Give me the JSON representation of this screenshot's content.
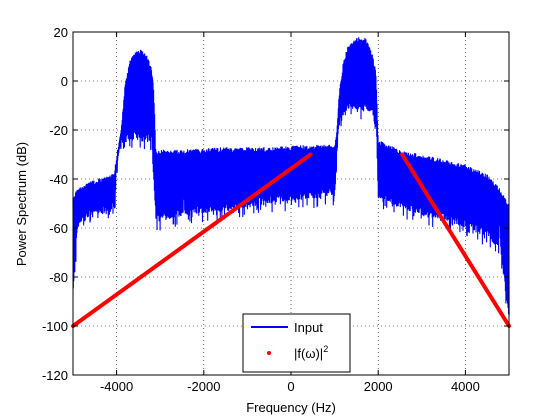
{
  "chart_data": {
    "type": "line",
    "title": "",
    "xlabel": "Frequency (Hz)",
    "ylabel": "Power Spectrum (dB)",
    "xlim": [
      -5000,
      5000
    ],
    "ylim": [
      -120,
      20
    ],
    "xticks": [
      -4000,
      -2000,
      0,
      2000,
      4000
    ],
    "yticks": [
      20,
      0,
      -20,
      -40,
      -60,
      -80,
      -100,
      -120
    ],
    "grid": true,
    "legend_position": "bottom-center",
    "series": [
      {
        "name": "Input",
        "color": "#0000ff",
        "style": "solid",
        "description": "dense oscillating spectrum",
        "envelope_upper": [
          [
            -5000,
            -47
          ],
          [
            -4900,
            -44
          ],
          [
            -4600,
            -41
          ],
          [
            -4300,
            -39
          ],
          [
            -4050,
            -37
          ],
          [
            -4000,
            -30
          ],
          [
            -3900,
            -20
          ],
          [
            -3850,
            -10
          ],
          [
            -3800,
            0
          ],
          [
            -3700,
            8
          ],
          [
            -3600,
            12
          ],
          [
            -3450,
            13
          ],
          [
            -3300,
            11
          ],
          [
            -3200,
            5
          ],
          [
            -3150,
            -2
          ],
          [
            -3100,
            -28
          ],
          [
            -2500,
            -28
          ],
          [
            -1500,
            -27
          ],
          [
            -500,
            -27
          ],
          [
            500,
            -26
          ],
          [
            1000,
            -26
          ],
          [
            1050,
            -20
          ],
          [
            1100,
            -5
          ],
          [
            1200,
            8
          ],
          [
            1300,
            14
          ],
          [
            1500,
            18
          ],
          [
            1700,
            18
          ],
          [
            1850,
            12
          ],
          [
            1950,
            4
          ],
          [
            2000,
            -24
          ],
          [
            2500,
            -28
          ],
          [
            3000,
            -30
          ],
          [
            3500,
            -32
          ],
          [
            4000,
            -34
          ],
          [
            4500,
            -38
          ],
          [
            4800,
            -44
          ],
          [
            5000,
            -50
          ]
        ],
        "envelope_lower": [
          [
            -5000,
            -85
          ],
          [
            -4900,
            -60
          ],
          [
            -4600,
            -55
          ],
          [
            -4300,
            -54
          ],
          [
            -4050,
            -52
          ],
          [
            -4000,
            -38
          ],
          [
            -3950,
            -27
          ],
          [
            -3800,
            -25
          ],
          [
            -3600,
            -24
          ],
          [
            -3400,
            -24
          ],
          [
            -3200,
            -25
          ],
          [
            -3150,
            -42
          ],
          [
            -3100,
            -58
          ],
          [
            -2500,
            -55
          ],
          [
            -1500,
            -53
          ],
          [
            -500,
            -50
          ],
          [
            500,
            -48
          ],
          [
            1000,
            -47
          ],
          [
            1050,
            -30
          ],
          [
            1100,
            -17
          ],
          [
            1300,
            -12
          ],
          [
            1600,
            -12
          ],
          [
            1850,
            -13
          ],
          [
            1950,
            -20
          ],
          [
            2000,
            -48
          ],
          [
            2500,
            -52
          ],
          [
            3000,
            -55
          ],
          [
            3500,
            -57
          ],
          [
            4000,
            -60
          ],
          [
            4500,
            -64
          ],
          [
            4800,
            -70
          ],
          [
            5000,
            -98
          ]
        ]
      },
      {
        "name": "|f(ω)|²",
        "color": "#ff0000",
        "style": "markers",
        "segments": [
          [
            [
              -5000,
              -100
            ],
            [
              450,
              -30
            ]
          ],
          [
            [
              2550,
              -30
            ],
            [
              5000,
              -100
            ]
          ]
        ]
      }
    ]
  },
  "legend": {
    "input_label": "Input",
    "f_label_main": "|f(ω)|",
    "f_label_sup": "2"
  }
}
